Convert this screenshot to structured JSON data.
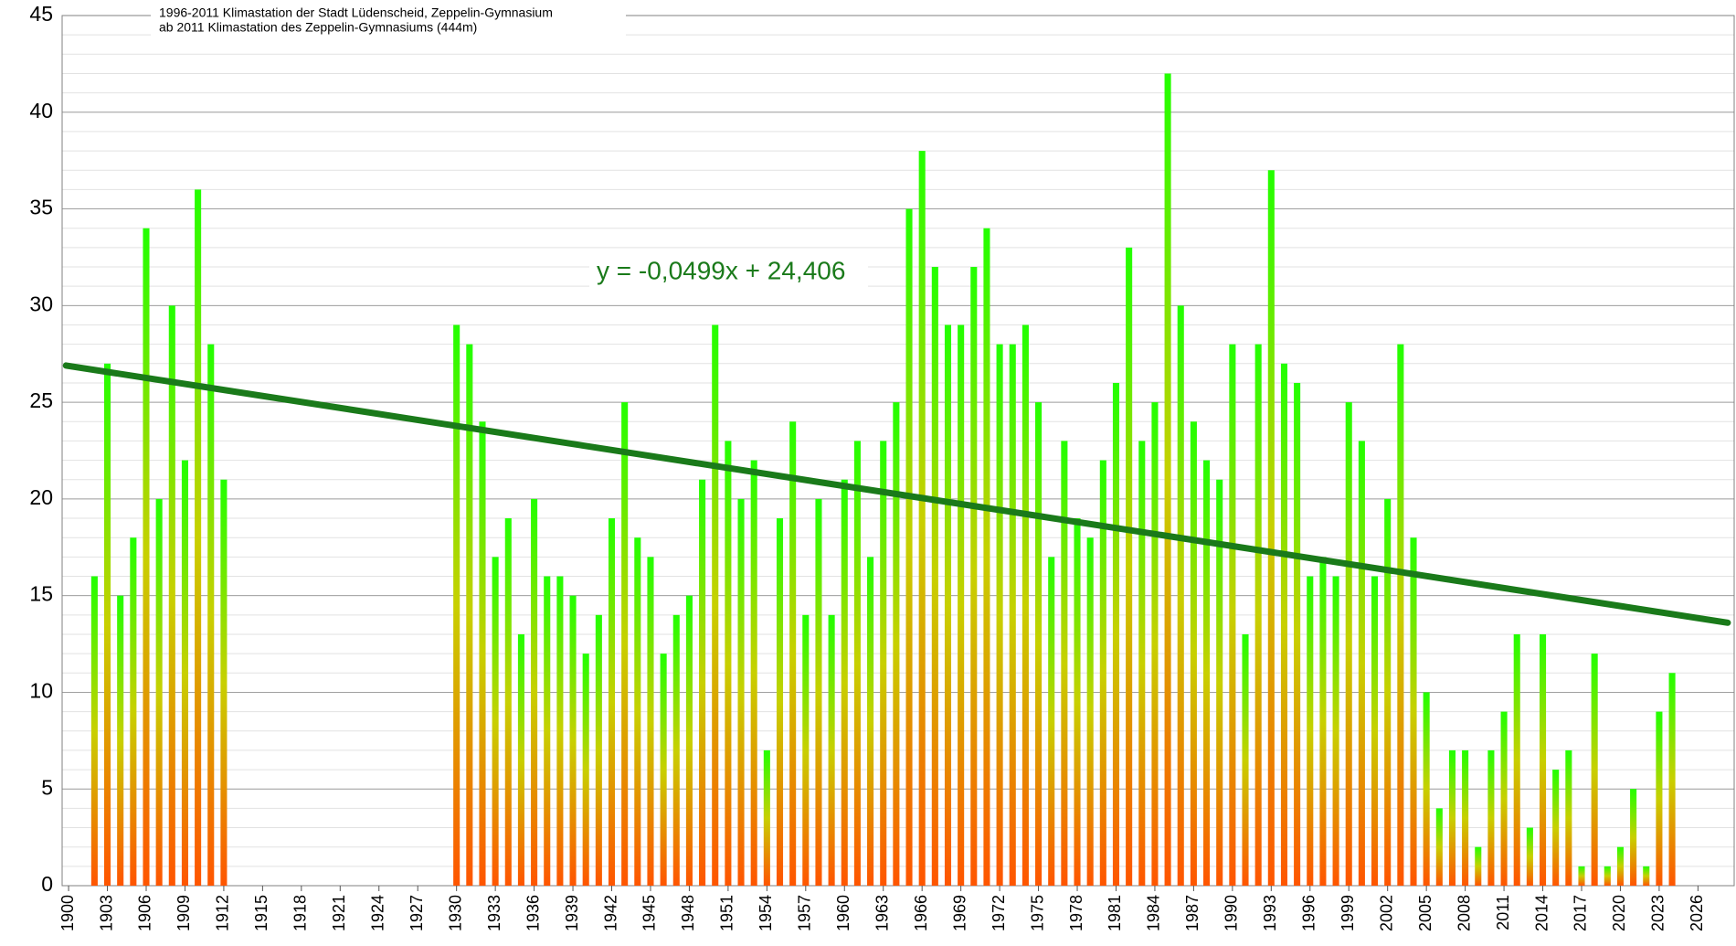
{
  "chart_data": {
    "type": "bar",
    "notes": [
      "1996-2011 Klimastation der Stadt Lüdenscheid, Zeppelin-Gymnasium",
      "ab 2011 Klimastation des Zeppelin-Gymnasiums (444m)"
    ],
    "x": [
      1902,
      1903,
      1904,
      1905,
      1906,
      1907,
      1908,
      1909,
      1910,
      1911,
      1912,
      1913,
      1914,
      1915,
      1916,
      1917,
      1918,
      1919,
      1920,
      1921,
      1922,
      1923,
      1924,
      1925,
      1926,
      1927,
      1928,
      1929,
      1930,
      1931,
      1932,
      1933,
      1934,
      1935,
      1936,
      1937,
      1938,
      1939,
      1940,
      1941,
      1942,
      1943,
      1944,
      1945,
      1946,
      1947,
      1948,
      1949,
      1950,
      1951,
      1952,
      1953,
      1954,
      1955,
      1956,
      1957,
      1958,
      1959,
      1960,
      1961,
      1962,
      1963,
      1964,
      1965,
      1966,
      1967,
      1968,
      1969,
      1970,
      1971,
      1972,
      1973,
      1974,
      1975,
      1976,
      1977,
      1978,
      1979,
      1980,
      1981,
      1982,
      1983,
      1984,
      1985,
      1986,
      1987,
      1988,
      1989,
      1990,
      1991,
      1992,
      1993,
      1994,
      1995,
      1996,
      1997,
      1998,
      1999,
      2000,
      2001,
      2002,
      2003,
      2004,
      2005,
      2006,
      2007,
      2008,
      2009,
      2010,
      2011,
      2012,
      2013,
      2014,
      2015,
      2016,
      2017,
      2018,
      2019,
      2020,
      2021,
      2022,
      2023,
      2024
    ],
    "values": [
      16,
      27,
      15,
      18,
      34,
      20,
      30,
      22,
      36,
      28,
      21,
      null,
      null,
      null,
      null,
      null,
      null,
      null,
      null,
      null,
      null,
      null,
      null,
      null,
      null,
      null,
      null,
      null,
      29,
      28,
      24,
      17,
      19,
      13,
      20,
      16,
      16,
      15,
      12,
      14,
      19,
      25,
      18,
      17,
      12,
      14,
      15,
      21,
      29,
      23,
      20,
      22,
      7,
      19,
      24,
      14,
      20,
      14,
      21,
      23,
      17,
      23,
      25,
      35,
      38,
      32,
      29,
      29,
      32,
      34,
      28,
      28,
      29,
      25,
      17,
      23,
      19,
      18,
      22,
      26,
      33,
      23,
      25,
      42,
      30,
      24,
      22,
      21,
      28,
      13,
      28,
      37,
      27,
      26,
      16,
      17,
      16,
      25,
      23,
      16,
      20,
      28,
      18,
      10,
      4,
      7,
      7,
      2,
      7,
      9,
      13,
      3,
      13,
      6,
      7,
      1,
      12,
      1,
      2,
      5,
      1,
      9,
      11
    ],
    "colors": [
      "#ff5500",
      "#c8d000",
      "#22ff00"
    ],
    "trendline": {
      "label": "y = -0,0499x + 24,406",
      "color": "#1a7a1a",
      "x": [
        1899.8,
        2028.3
      ],
      "values": [
        26.9,
        13.6
      ]
    },
    "xlim": [
      1899.5,
      2028.8
    ],
    "xticks": [
      1900,
      1903,
      1906,
      1909,
      1912,
      1915,
      1918,
      1921,
      1924,
      1927,
      1930,
      1933,
      1936,
      1939,
      1942,
      1945,
      1948,
      1951,
      1954,
      1957,
      1960,
      1963,
      1966,
      1969,
      1972,
      1975,
      1978,
      1981,
      1984,
      1987,
      1990,
      1993,
      1996,
      1999,
      2002,
      2005,
      2008,
      2011,
      2014,
      2017,
      2020,
      2023,
      2026
    ],
    "ylim": [
      0,
      45
    ],
    "yticks": [
      0,
      5,
      10,
      15,
      20,
      25,
      30,
      35,
      40,
      45
    ],
    "minor_grid_step": 1,
    "grid": true
  }
}
